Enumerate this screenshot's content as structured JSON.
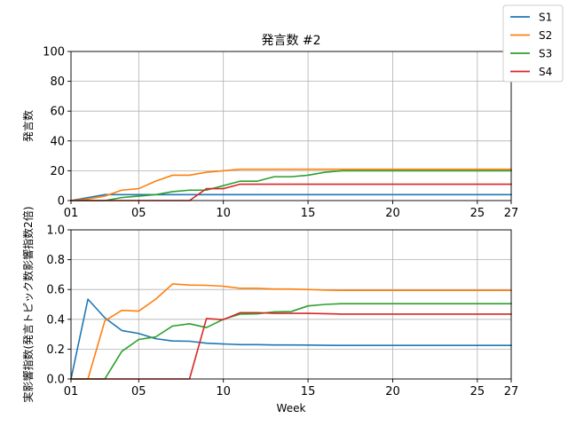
{
  "chart_data": [
    {
      "type": "line",
      "title": "発言数 #2",
      "xlabel": "",
      "ylabel": "発言数",
      "xlim": [
        1,
        27
      ],
      "ylim": [
        0,
        100
      ],
      "xticks": [
        1,
        5,
        10,
        15,
        20,
        25,
        27
      ],
      "xtick_labels": [
        "01",
        "05",
        "10",
        "15",
        "20",
        "25",
        "27"
      ],
      "yticks": [
        0,
        20,
        40,
        60,
        80,
        100
      ],
      "ytick_labels": [
        "0",
        "20",
        "40",
        "60",
        "80",
        "100"
      ],
      "grid": true,
      "x": [
        1,
        2,
        3,
        4,
        5,
        6,
        7,
        8,
        9,
        10,
        11,
        12,
        13,
        14,
        15,
        16,
        17,
        18,
        19,
        20,
        21,
        22,
        23,
        24,
        25,
        26,
        27
      ],
      "series": [
        {
          "name": "S1",
          "color": "#1f77b4",
          "values": [
            0,
            2,
            4,
            4,
            4,
            4,
            4,
            4,
            4,
            4,
            4,
            4,
            4,
            4,
            4,
            4,
            4,
            4,
            4,
            4,
            4,
            4,
            4,
            4,
            4,
            4,
            4
          ]
        },
        {
          "name": "S2",
          "color": "#ff7f0e",
          "values": [
            0,
            1,
            3,
            7,
            8,
            13,
            17,
            17,
            19,
            20,
            21,
            21,
            21,
            21,
            21,
            21,
            21,
            21,
            21,
            21,
            21,
            21,
            21,
            21,
            21,
            21,
            21
          ]
        },
        {
          "name": "S3",
          "color": "#2ca02c",
          "values": [
            0,
            0,
            0,
            2,
            3,
            4,
            6,
            7,
            7,
            10,
            13,
            13,
            16,
            16,
            17,
            19,
            20,
            20,
            20,
            20,
            20,
            20,
            20,
            20,
            20,
            20,
            20
          ]
        },
        {
          "name": "S4",
          "color": "#d62728",
          "values": [
            0,
            0,
            0,
            0,
            0,
            0,
            0,
            0,
            8,
            8,
            11,
            11,
            11,
            11,
            11,
            11,
            11,
            11,
            11,
            11,
            11,
            11,
            11,
            11,
            11,
            11,
            11
          ]
        }
      ]
    },
    {
      "type": "line",
      "title": "",
      "xlabel": "Week",
      "ylabel": "実影響指数(発言トピック数影響指数2倍)",
      "xlim": [
        1,
        27
      ],
      "ylim": [
        0,
        1.0
      ],
      "xticks": [
        1,
        5,
        10,
        15,
        20,
        25,
        27
      ],
      "xtick_labels": [
        "01",
        "05",
        "10",
        "15",
        "20",
        "25",
        "27"
      ],
      "yticks": [
        0,
        0.2,
        0.4,
        0.6,
        0.8,
        1.0
      ],
      "ytick_labels": [
        "0.0",
        "0.2",
        "0.4",
        "0.6",
        "0.8",
        "1.0"
      ],
      "grid": true,
      "x": [
        1,
        2,
        3,
        4,
        5,
        6,
        7,
        8,
        9,
        10,
        11,
        12,
        13,
        14,
        15,
        16,
        17,
        18,
        19,
        20,
        21,
        22,
        23,
        24,
        25,
        26,
        27
      ],
      "series": [
        {
          "name": "S1",
          "color": "#1f77b4",
          "values": [
            0,
            0.535,
            0.41,
            0.325,
            0.305,
            0.27,
            0.255,
            0.253,
            0.24,
            0.235,
            0.23,
            0.23,
            0.228,
            0.228,
            0.227,
            0.226,
            0.225,
            0.225,
            0.225,
            0.225,
            0.225,
            0.225,
            0.225,
            0.225,
            0.225,
            0.225,
            0.225
          ]
        },
        {
          "name": "S2",
          "color": "#ff7f0e",
          "values": [
            0,
            0,
            0.39,
            0.46,
            0.455,
            0.535,
            0.637,
            0.63,
            0.628,
            0.622,
            0.608,
            0.608,
            0.603,
            0.603,
            0.6,
            0.596,
            0.594,
            0.594,
            0.594,
            0.594,
            0.594,
            0.594,
            0.594,
            0.594,
            0.594,
            0.594,
            0.594
          ]
        },
        {
          "name": "S3",
          "color": "#2ca02c",
          "values": [
            0,
            0,
            0,
            0.185,
            0.265,
            0.282,
            0.355,
            0.37,
            0.345,
            0.4,
            0.435,
            0.437,
            0.45,
            0.452,
            0.49,
            0.5,
            0.505,
            0.505,
            0.505,
            0.505,
            0.505,
            0.505,
            0.505,
            0.505,
            0.505,
            0.505,
            0.505
          ]
        },
        {
          "name": "S4",
          "color": "#d62728",
          "values": [
            0,
            0,
            0,
            0,
            0,
            0,
            0,
            0,
            0.405,
            0.398,
            0.445,
            0.445,
            0.44,
            0.44,
            0.44,
            0.438,
            0.435,
            0.435,
            0.435,
            0.435,
            0.435,
            0.435,
            0.435,
            0.435,
            0.435,
            0.435,
            0.435
          ]
        }
      ]
    }
  ],
  "legend": {
    "placement": "top-right",
    "entries": [
      {
        "name": "S1",
        "color": "#1f77b4"
      },
      {
        "name": "S2",
        "color": "#ff7f0e"
      },
      {
        "name": "S3",
        "color": "#2ca02c"
      },
      {
        "name": "S4",
        "color": "#d62728"
      }
    ]
  }
}
